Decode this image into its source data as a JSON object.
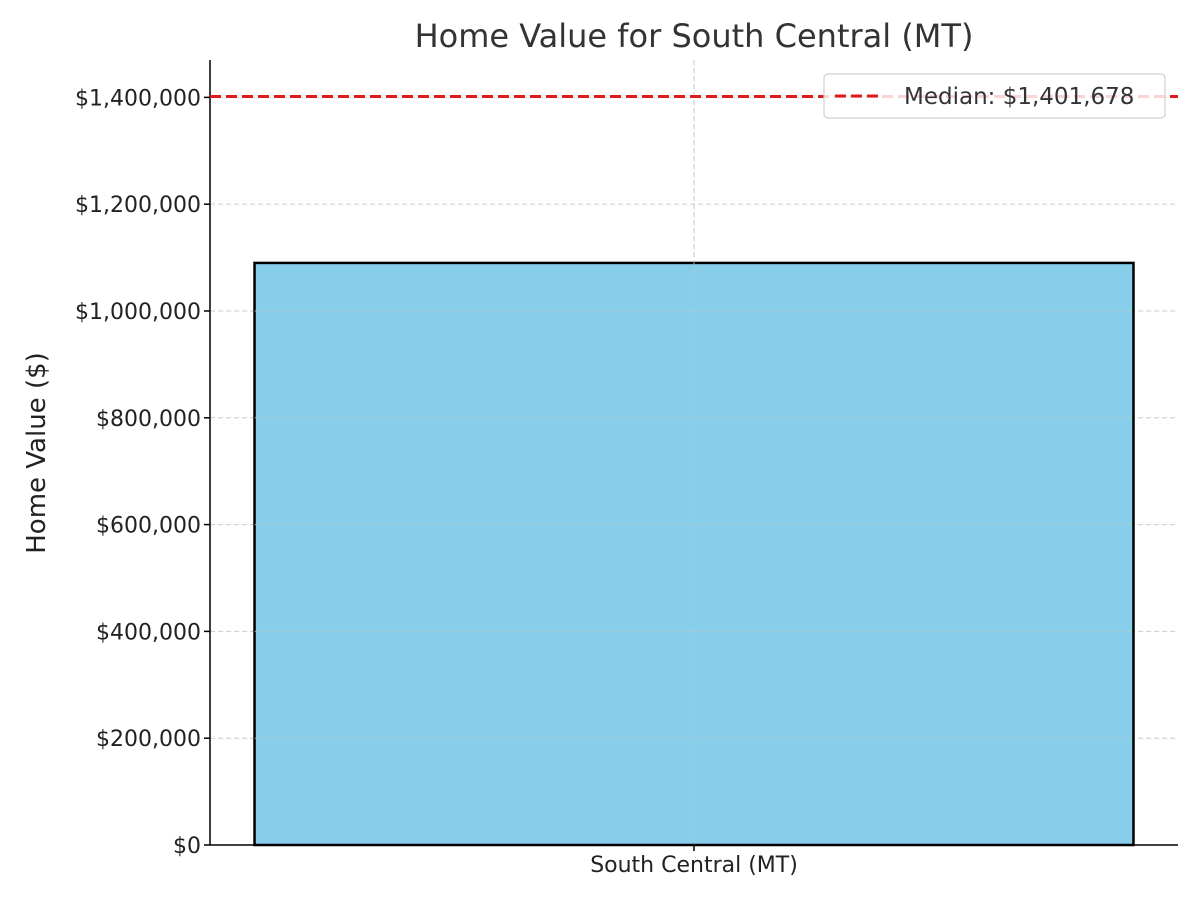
{
  "chart_data": {
    "type": "bar",
    "title": "Home Value for South Central (MT)",
    "xlabel": "",
    "ylabel": "Home Value ($)",
    "categories": [
      "South Central (MT)"
    ],
    "values": [
      1090000
    ],
    "ylim": [
      0,
      1470000
    ],
    "y_ticks": [
      0,
      200000,
      400000,
      600000,
      800000,
      1000000,
      1200000,
      1400000
    ],
    "y_tick_labels": [
      "$0",
      "$200,000",
      "$400,000",
      "$600,000",
      "$800,000",
      "$1,000,000",
      "$1,200,000",
      "$1,400,000"
    ],
    "grid": true,
    "median": {
      "value": 1401678,
      "label": "Median: $1,401,678"
    },
    "legend_position": "top-right",
    "colors": {
      "bar_fill": "#87ceeb",
      "bar_edge": "#000000",
      "median_line": "#e31a1c",
      "grid": "#cccccc",
      "text": "#333333",
      "axis": "#000000"
    }
  }
}
